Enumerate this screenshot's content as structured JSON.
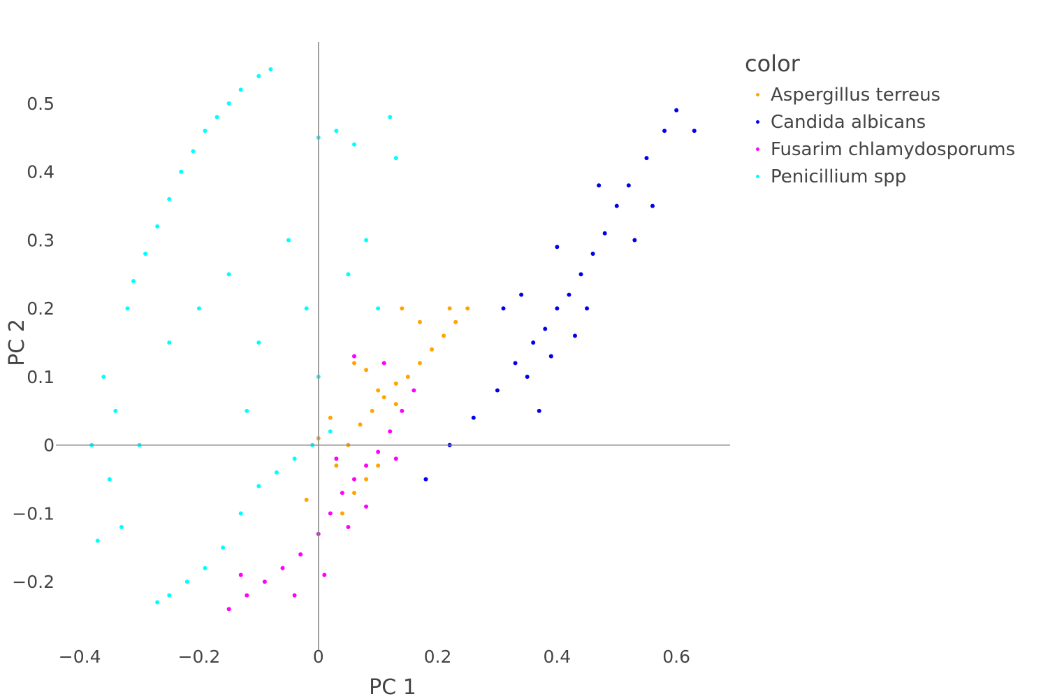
{
  "chart_data": {
    "type": "scatter",
    "xlabel": "PC 1",
    "ylabel": "PC 2",
    "xlim": [
      -0.44,
      0.69
    ],
    "ylim": [
      -0.3,
      0.59
    ],
    "x_ticks": [
      -0.4,
      -0.2,
      0,
      0.2,
      0.4,
      0.6
    ],
    "x_tick_labels": [
      "−0.4",
      "−0.2",
      "0",
      "0.2",
      "0.4",
      "0.6"
    ],
    "y_ticks": [
      -0.2,
      -0.1,
      0,
      0.1,
      0.2,
      0.3,
      0.4,
      0.5
    ],
    "y_tick_labels": [
      "−0.2",
      "−0.1",
      "0",
      "0.1",
      "0.2",
      "0.3",
      "0.4",
      "0.5"
    ],
    "grid": false,
    "zero_lines": true,
    "legend": {
      "title": "color",
      "position": "top-right, outside plot"
    },
    "series": [
      {
        "name": "Aspergillus terreus",
        "color": "#FFA500",
        "points": [
          [
            0.03,
            -0.03
          ],
          [
            0.05,
            0.0
          ],
          [
            0.07,
            0.03
          ],
          [
            0.09,
            0.05
          ],
          [
            0.11,
            0.07
          ],
          [
            0.13,
            0.09
          ],
          [
            0.15,
            0.1
          ],
          [
            0.17,
            0.12
          ],
          [
            0.19,
            0.14
          ],
          [
            0.21,
            0.16
          ],
          [
            0.23,
            0.18
          ],
          [
            0.25,
            0.2
          ],
          [
            0.06,
            0.12
          ],
          [
            0.08,
            0.11
          ],
          [
            0.1,
            0.08
          ],
          [
            0.13,
            0.06
          ],
          [
            0.04,
            -0.1
          ],
          [
            0.06,
            -0.07
          ],
          [
            0.08,
            -0.05
          ],
          [
            0.1,
            -0.03
          ],
          [
            -0.02,
            -0.08
          ],
          [
            0.0,
            0.01
          ],
          [
            0.02,
            0.04
          ],
          [
            0.22,
            0.2
          ],
          [
            0.17,
            0.18
          ],
          [
            0.14,
            0.2
          ]
        ]
      },
      {
        "name": "Candida albicans",
        "color": "#0000EE",
        "points": [
          [
            0.18,
            -0.05
          ],
          [
            0.22,
            0.0
          ],
          [
            0.26,
            0.04
          ],
          [
            0.3,
            0.08
          ],
          [
            0.33,
            0.12
          ],
          [
            0.36,
            0.15
          ],
          [
            0.38,
            0.17
          ],
          [
            0.4,
            0.2
          ],
          [
            0.42,
            0.22
          ],
          [
            0.44,
            0.25
          ],
          [
            0.46,
            0.28
          ],
          [
            0.48,
            0.31
          ],
          [
            0.5,
            0.35
          ],
          [
            0.52,
            0.38
          ],
          [
            0.55,
            0.42
          ],
          [
            0.58,
            0.46
          ],
          [
            0.6,
            0.49
          ],
          [
            0.63,
            0.46
          ],
          [
            0.35,
            0.1
          ],
          [
            0.39,
            0.13
          ],
          [
            0.43,
            0.16
          ],
          [
            0.31,
            0.2
          ],
          [
            0.34,
            0.22
          ],
          [
            0.45,
            0.2
          ],
          [
            0.53,
            0.3
          ],
          [
            0.56,
            0.35
          ],
          [
            0.47,
            0.38
          ],
          [
            0.4,
            0.29
          ],
          [
            0.37,
            0.05
          ]
        ]
      },
      {
        "name": "Fusarim chlamydosporums",
        "color": "#FF00FF",
        "points": [
          [
            -0.15,
            -0.24
          ],
          [
            -0.12,
            -0.22
          ],
          [
            -0.09,
            -0.2
          ],
          [
            -0.06,
            -0.18
          ],
          [
            -0.03,
            -0.16
          ],
          [
            0.0,
            -0.13
          ],
          [
            0.02,
            -0.1
          ],
          [
            0.04,
            -0.07
          ],
          [
            0.06,
            -0.05
          ],
          [
            0.08,
            -0.03
          ],
          [
            0.1,
            -0.01
          ],
          [
            0.12,
            0.02
          ],
          [
            0.14,
            0.05
          ],
          [
            0.16,
            0.08
          ],
          [
            0.05,
            -0.12
          ],
          [
            0.08,
            -0.09
          ],
          [
            -0.04,
            -0.22
          ],
          [
            0.01,
            -0.19
          ],
          [
            0.11,
            0.12
          ],
          [
            0.06,
            0.13
          ],
          [
            -0.13,
            -0.19
          ],
          [
            0.03,
            -0.02
          ],
          [
            0.13,
            -0.02
          ]
        ]
      },
      {
        "name": "Penicillium spp",
        "color": "#00FFFF",
        "points": [
          [
            -0.27,
            -0.23
          ],
          [
            -0.25,
            -0.22
          ],
          [
            -0.22,
            -0.2
          ],
          [
            -0.19,
            -0.18
          ],
          [
            -0.16,
            -0.15
          ],
          [
            -0.13,
            -0.1
          ],
          [
            -0.1,
            -0.06
          ],
          [
            -0.07,
            -0.04
          ],
          [
            -0.04,
            -0.02
          ],
          [
            -0.01,
            0.0
          ],
          [
            0.02,
            0.02
          ],
          [
            -0.32,
            0.2
          ],
          [
            -0.31,
            0.24
          ],
          [
            -0.29,
            0.28
          ],
          [
            -0.27,
            0.32
          ],
          [
            -0.25,
            0.36
          ],
          [
            -0.23,
            0.4
          ],
          [
            -0.21,
            0.43
          ],
          [
            -0.19,
            0.46
          ],
          [
            -0.17,
            0.48
          ],
          [
            -0.15,
            0.5
          ],
          [
            -0.13,
            0.52
          ],
          [
            -0.1,
            0.54
          ],
          [
            -0.08,
            0.55
          ],
          [
            -0.34,
            0.05
          ],
          [
            -0.36,
            0.1
          ],
          [
            -0.35,
            -0.05
          ],
          [
            -0.33,
            -0.12
          ],
          [
            -0.3,
            0.0
          ],
          [
            -0.2,
            0.2
          ],
          [
            -0.15,
            0.25
          ],
          [
            -0.1,
            0.15
          ],
          [
            -0.05,
            0.3
          ],
          [
            0.0,
            0.45
          ],
          [
            0.03,
            0.46
          ],
          [
            0.05,
            0.25
          ],
          [
            0.08,
            0.3
          ],
          [
            0.1,
            0.2
          ],
          [
            0.12,
            0.48
          ],
          [
            0.13,
            0.42
          ],
          [
            0.06,
            0.44
          ],
          [
            -0.02,
            0.2
          ],
          [
            0.0,
            0.1
          ],
          [
            -0.12,
            0.05
          ],
          [
            -0.25,
            0.15
          ],
          [
            -0.38,
            0.0
          ],
          [
            -0.37,
            -0.14
          ]
        ]
      }
    ]
  }
}
